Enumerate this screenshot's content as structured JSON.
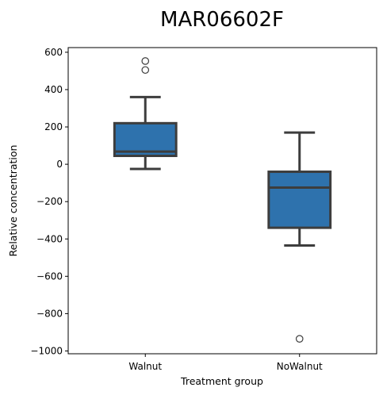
{
  "chart_data": {
    "type": "box",
    "title": "MAR06602F",
    "xlabel": "Treatment group",
    "ylabel": "Relative concentration",
    "categories": [
      "Walnut",
      "NoWalnut"
    ],
    "ylim": [
      -1015,
      625
    ],
    "yticks": [
      600,
      400,
      200,
      0,
      -200,
      -400,
      -600,
      -800,
      -1000
    ],
    "ytick_labels": [
      "600",
      "400",
      "200",
      "0",
      "−200",
      "−400",
      "−600",
      "−800",
      "−1000"
    ],
    "grid": false,
    "box_color": "#2e72ad",
    "line_color": "#3d3d3d",
    "boxes": [
      {
        "category": "Walnut",
        "whisker_low": -25,
        "q1": 45,
        "median": 68,
        "q3": 220,
        "whisker_high": 360,
        "outliers": [
          553,
          505
        ]
      },
      {
        "category": "NoWalnut",
        "whisker_low": -435,
        "q1": -340,
        "median": -125,
        "q3": -40,
        "whisker_high": 170,
        "outliers": [
          -935
        ]
      }
    ]
  }
}
